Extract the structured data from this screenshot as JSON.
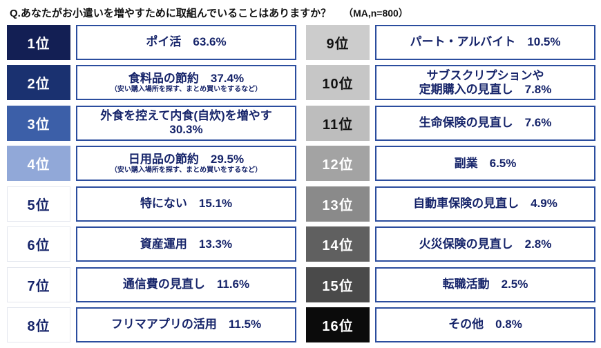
{
  "header": {
    "question": "Q.あなたがお小遣いを増やすために取組んでいることはありますか？",
    "sample_note": "（MA,n=800）"
  },
  "colors": {
    "box_border": "#2b4d9e",
    "text": "#16246a",
    "title_text": "#111111"
  },
  "rows": [
    {
      "rank": "1位",
      "lines": [
        "ポイ活　63.6%"
      ],
      "badge_style": "background:#131f54;color:#ffffff"
    },
    {
      "rank": "2位",
      "lines": [
        "食料品の節約　37.4%"
      ],
      "note": "（安い購入場所を探す、まとめ買いをするなど）",
      "badge_style": "background:#1a3170;color:#ffffff"
    },
    {
      "rank": "3位",
      "lines": [
        "外食を控えて内食(自炊)を増やす",
        "30.3%"
      ],
      "badge_style": "background:#3c5fa8;color:#ffffff"
    },
    {
      "rank": "4位",
      "lines": [
        "日用品の節約　29.5%"
      ],
      "note": "（安い購入場所を探す、まとめ買いをするなど）",
      "badge_style": "background:#91a8d8;color:#ffffff"
    },
    {
      "rank": "5位",
      "lines": [
        "特にない　15.1%"
      ],
      "badge_style": "background:#ffffff;color:#16246a;border:1px solid #e3e6ee"
    },
    {
      "rank": "6位",
      "lines": [
        "資産運用　13.3%"
      ],
      "badge_style": "background:#ffffff;color:#16246a;border:1px solid #e3e6ee"
    },
    {
      "rank": "7位",
      "lines": [
        "通信費の見直し　11.6%"
      ],
      "badge_style": "background:#ffffff;color:#16246a;border:1px solid #e3e6ee"
    },
    {
      "rank": "8位",
      "lines": [
        "フリマアプリの活用　11.5%"
      ],
      "badge_style": "background:#ffffff;color:#16246a;border:1px solid #e3e6ee"
    },
    {
      "rank": "9位",
      "lines": [
        "パート・アルバイト　10.5%"
      ],
      "badge_style": "background:#cccccc;color:#111111"
    },
    {
      "rank": "10位",
      "lines": [
        "サブスクリプションや",
        "定期購入の見直し　7.8%"
      ],
      "badge_style": "background:#c6c6c6;color:#111111"
    },
    {
      "rank": "11位",
      "lines": [
        "生命保険の見直し　7.6%"
      ],
      "badge_style": "background:#bdbdbd;color:#111111"
    },
    {
      "rank": "12位",
      "lines": [
        "副業　6.5%"
      ],
      "badge_style": "background:#a3a3a3;color:#ffffff"
    },
    {
      "rank": "13位",
      "lines": [
        "自動車保険の見直し　4.9%"
      ],
      "badge_style": "background:#8a8a8a;color:#ffffff"
    },
    {
      "rank": "14位",
      "lines": [
        "火災保険の見直し　2.8%"
      ],
      "badge_style": "background:#606060;color:#ffffff"
    },
    {
      "rank": "15位",
      "lines": [
        "転職活動　2.5%"
      ],
      "badge_style": "background:#4a4a4a;color:#ffffff"
    },
    {
      "rank": "16位",
      "lines": [
        "その他　0.8%"
      ],
      "badge_style": "background:#0b0b0b;color:#ffffff"
    }
  ],
  "chart_data": {
    "type": "table",
    "title": "Q.あなたがお小遣いを増やすために取組んでいることはありますか？（MA,n=800）",
    "unit": "%",
    "n": 800,
    "items": [
      {
        "rank": 1,
        "label": "ポイ活",
        "value": 63.6
      },
      {
        "rank": 2,
        "label": "食料品の節約",
        "value": 37.4,
        "note": "安い購入場所を探す、まとめ買いをするなど"
      },
      {
        "rank": 3,
        "label": "外食を控えて内食(自炊)を増やす",
        "value": 30.3
      },
      {
        "rank": 4,
        "label": "日用品の節約",
        "value": 29.5,
        "note": "安い購入場所を探す、まとめ買いをするなど"
      },
      {
        "rank": 5,
        "label": "特にない",
        "value": 15.1
      },
      {
        "rank": 6,
        "label": "資産運用",
        "value": 13.3
      },
      {
        "rank": 7,
        "label": "通信費の見直し",
        "value": 11.6
      },
      {
        "rank": 8,
        "label": "フリマアプリの活用",
        "value": 11.5
      },
      {
        "rank": 9,
        "label": "パート・アルバイト",
        "value": 10.5
      },
      {
        "rank": 10,
        "label": "サブスクリプションや定期購入の見直し",
        "value": 7.8
      },
      {
        "rank": 11,
        "label": "生命保険の見直し",
        "value": 7.6
      },
      {
        "rank": 12,
        "label": "副業",
        "value": 6.5
      },
      {
        "rank": 13,
        "label": "自動車保険の見直し",
        "value": 4.9
      },
      {
        "rank": 14,
        "label": "火災保険の見直し",
        "value": 2.8
      },
      {
        "rank": 15,
        "label": "転職活動",
        "value": 2.5
      },
      {
        "rank": 16,
        "label": "その他",
        "value": 0.8
      }
    ]
  }
}
